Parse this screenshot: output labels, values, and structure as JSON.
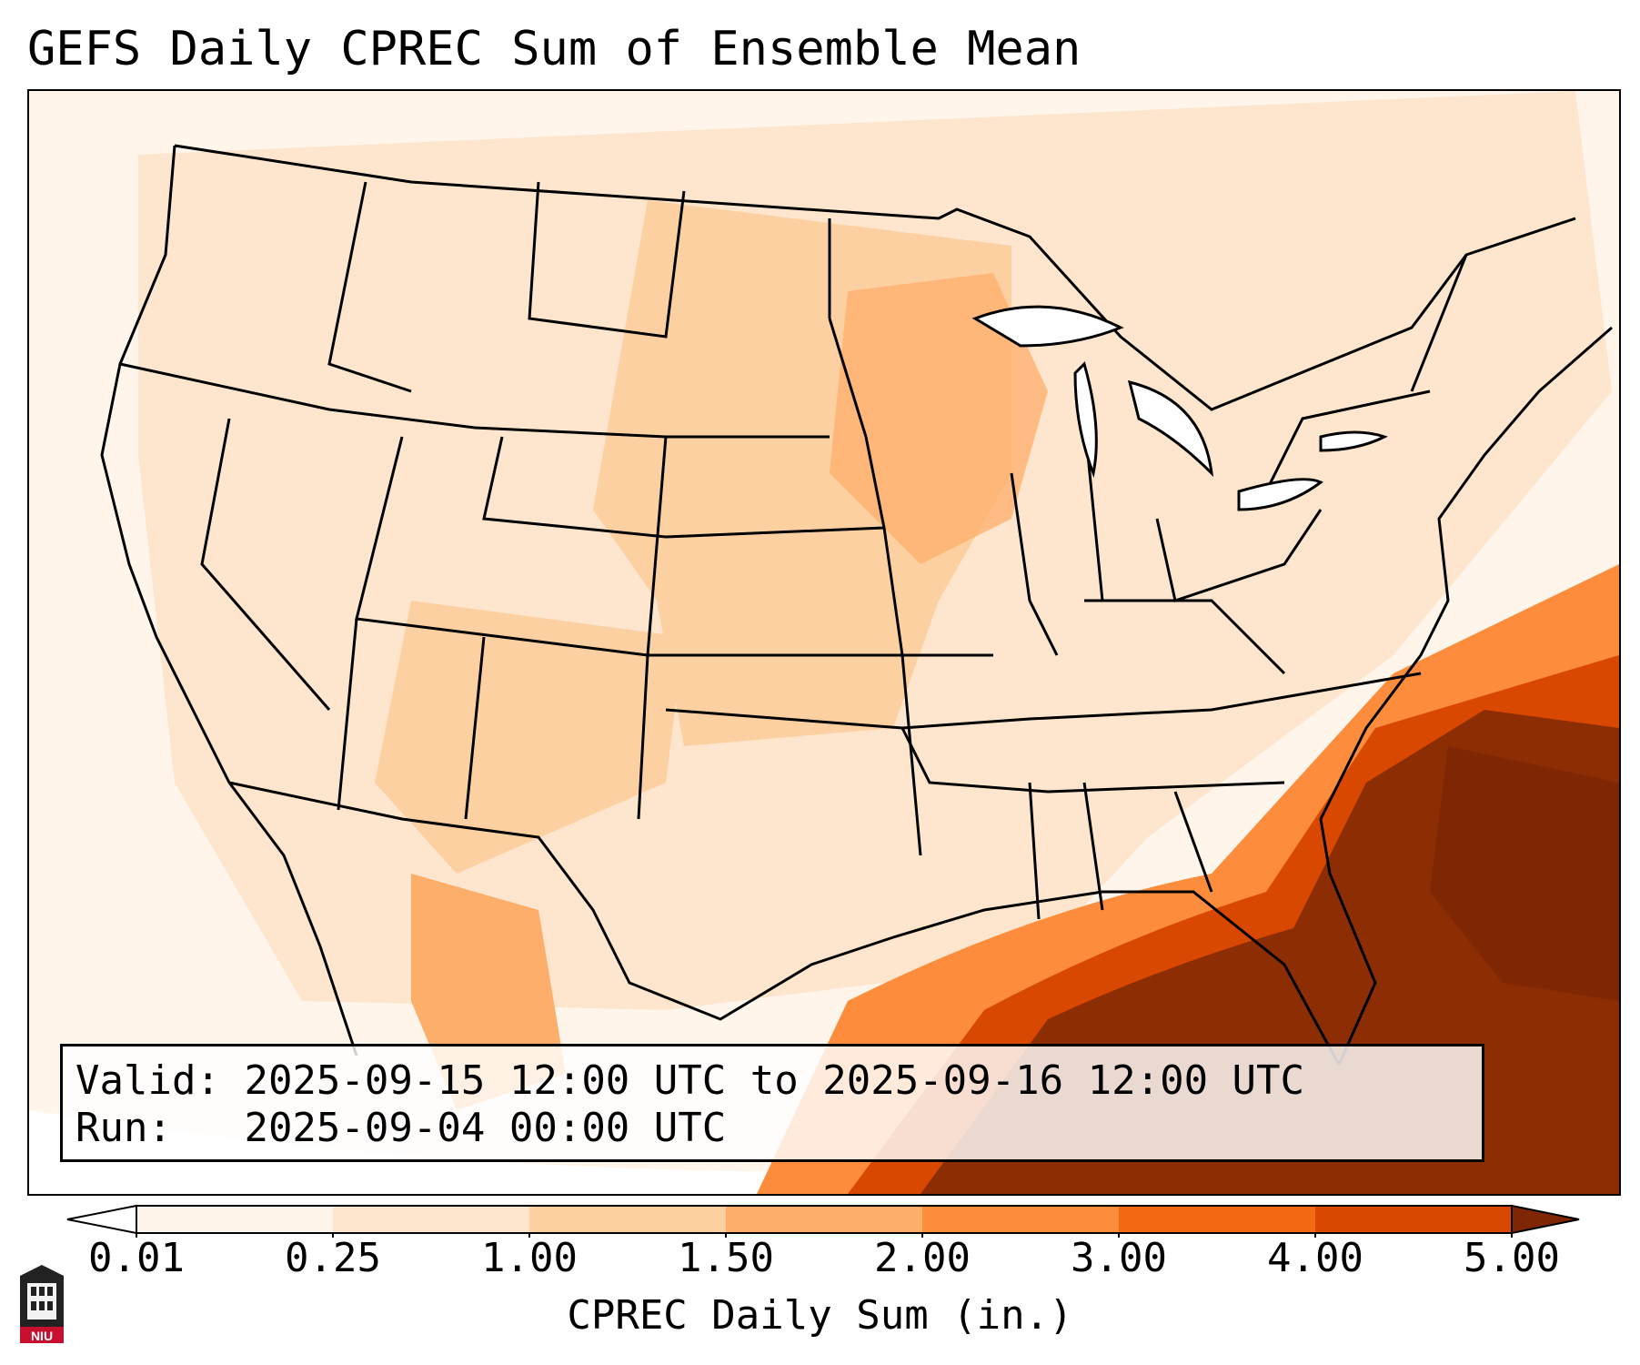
{
  "title": "GEFS Daily CPREC Sum of Ensemble Mean",
  "info": {
    "valid_label": "Valid:",
    "valid_value": "2025-09-15 12:00 UTC to 2025-09-16 12:00 UTC",
    "run_label": "Run:",
    "run_value": "2025-09-04 00:00 UTC"
  },
  "colorbar": {
    "label": "CPREC Daily Sum (in.)",
    "ticks": [
      "0.01",
      "0.25",
      "1.00",
      "1.50",
      "2.00",
      "3.00",
      "4.00",
      "5.00"
    ],
    "colors": [
      "#fff5eb",
      "#fee6ce",
      "#fdd0a2",
      "#fdae6b",
      "#fd8d3c",
      "#f16913",
      "#d94801",
      "#8c2d04"
    ],
    "under_color": "#ffffff",
    "over_color": "#7f2704"
  },
  "map": {
    "projection": "Lambert Conformal (CONUS)",
    "features": [
      "state-borders",
      "coastlines",
      "great-lakes"
    ]
  },
  "logo": {
    "text": "NIU"
  }
}
